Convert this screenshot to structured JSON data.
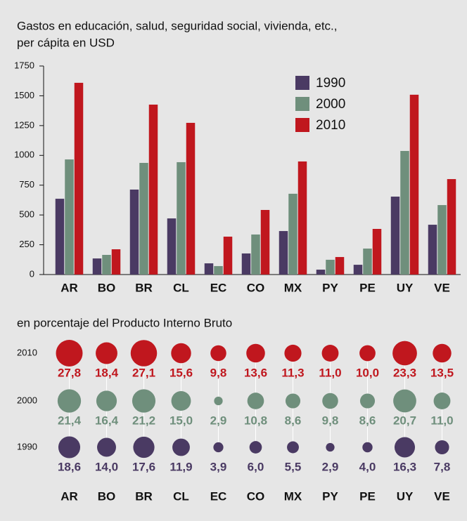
{
  "chart_data": [
    {
      "type": "bar",
      "title_lines": [
        "Gastos en educación, salud, seguridad social, vivienda, etc.,",
        "per cápita en USD"
      ],
      "categories": [
        "AR",
        "BO",
        "BR",
        "CL",
        "EC",
        "CO",
        "MX",
        "PY",
        "PE",
        "UY",
        "VE"
      ],
      "series": [
        {
          "name": "1990",
          "color": "#4a3a63",
          "values": [
            636,
            135,
            713,
            471,
            94,
            177,
            365,
            41,
            82,
            654,
            418
          ]
        },
        {
          "name": "2000",
          "color": "#6f8f7c",
          "values": [
            966,
            165,
            937,
            943,
            71,
            336,
            678,
            124,
            218,
            1037,
            583
          ]
        },
        {
          "name": "2010",
          "color": "#c0171e",
          "values": [
            1609,
            212,
            1426,
            1273,
            318,
            542,
            949,
            147,
            383,
            1509,
            801
          ]
        }
      ],
      "ylim": [
        0,
        1750
      ],
      "yticks": [
        0,
        250,
        500,
        750,
        1000,
        1250,
        1500,
        1750
      ],
      "legend": "top-right"
    },
    {
      "type": "bubble",
      "title": "en porcentaje del Producto Interno Bruto",
      "categories": [
        "AR",
        "BO",
        "BR",
        "CL",
        "EC",
        "CO",
        "MX",
        "PY",
        "PE",
        "UY",
        "VE"
      ],
      "series": [
        {
          "name": "2010",
          "color": "#c0171e",
          "values": [
            27.8,
            18.4,
            27.1,
            15.6,
            9.8,
            13.6,
            11.3,
            11.0,
            10.0,
            23.3,
            13.5
          ],
          "value_labels": [
            "27,8",
            "18,4",
            "27,1",
            "15,6",
            "9,8",
            "13,6",
            "11,3",
            "11,0",
            "10,0",
            "23,3",
            "13,5"
          ]
        },
        {
          "name": "2000",
          "color": "#6f8f7c",
          "values": [
            21.4,
            16.4,
            21.2,
            15.0,
            2.9,
            10.8,
            8.6,
            9.8,
            8.6,
            20.7,
            11.0
          ],
          "value_labels": [
            "21,4",
            "16,4",
            "21,2",
            "15,0",
            "2,9",
            "10,8",
            "8,6",
            "9,8",
            "8,6",
            "20,7",
            "11,0"
          ]
        },
        {
          "name": "1990",
          "color": "#4a3a63",
          "values": [
            18.6,
            14.0,
            17.6,
            11.9,
            3.9,
            6.0,
            5.5,
            2.9,
            4.0,
            16.3,
            7.8
          ],
          "value_labels": [
            "18,6",
            "14,0",
            "17,6",
            "11,9",
            "3,9",
            "6,0",
            "5,5",
            "2,9",
            "4,0",
            "16,3",
            "7,8"
          ]
        }
      ]
    }
  ]
}
